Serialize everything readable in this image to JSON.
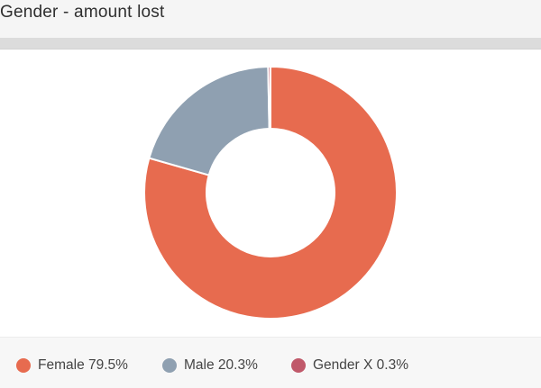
{
  "header": {
    "title": "Gender - amount lost"
  },
  "chart_data": {
    "type": "pie",
    "donut": true,
    "title": "Gender - amount lost",
    "legend_position": "bottom",
    "series": [
      {
        "name": "Female",
        "value": 79.5,
        "label": "Female 79.5%",
        "color": "#e76b4f"
      },
      {
        "name": "Male",
        "value": 20.3,
        "label": "Male 20.3%",
        "color": "#8fa0b1"
      },
      {
        "name": "Gender X",
        "value": 0.3,
        "label": "Gender X 0.3%",
        "color": "#c0596a"
      }
    ]
  }
}
